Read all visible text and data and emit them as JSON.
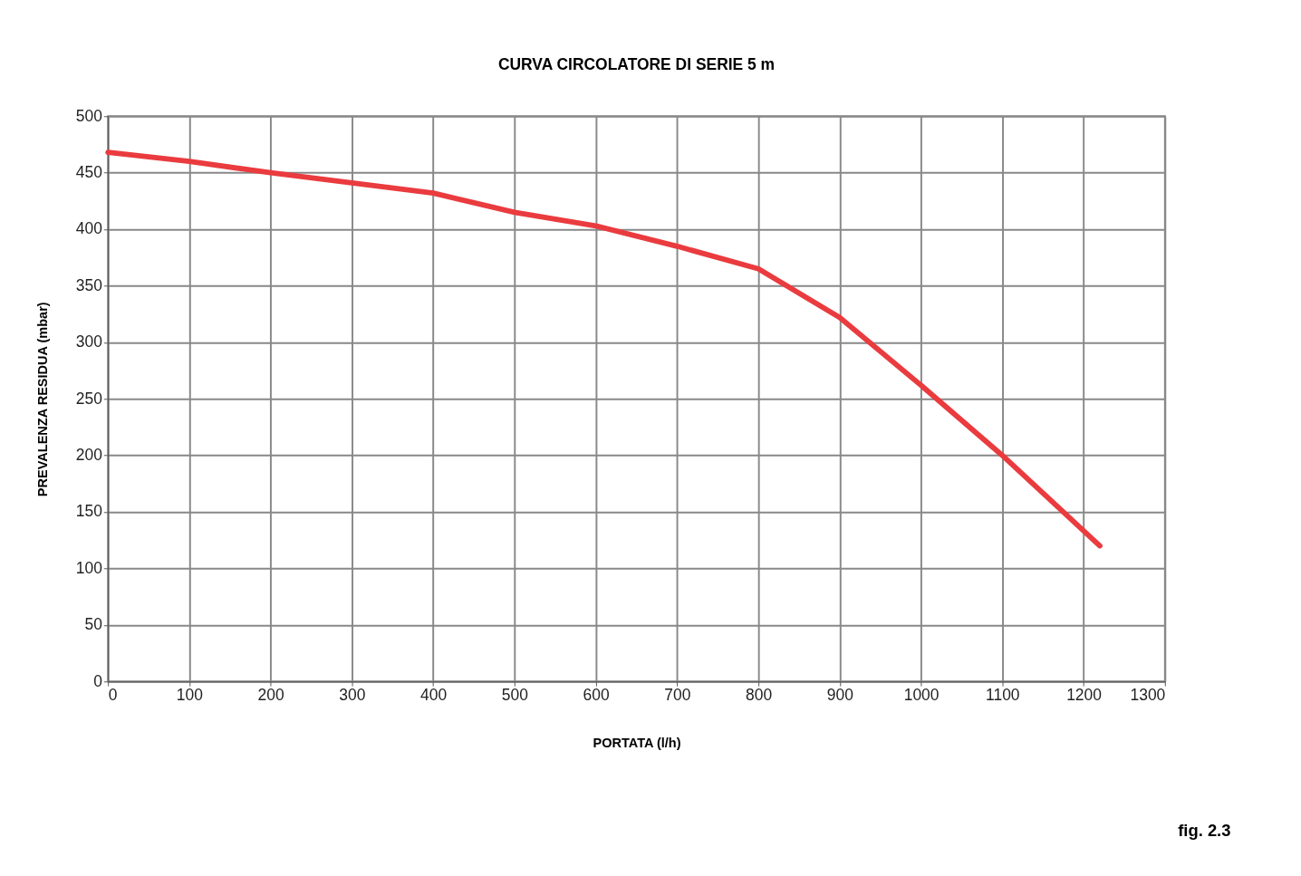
{
  "chart_data": {
    "type": "line",
    "title": "CURVA CIRCOLATORE DI SERIE 5 m",
    "xlabel": "PORTATA (l/h)",
    "ylabel": "PREVALENZA RESIDUA (mbar)",
    "annotations": [
      "fig. 2.3"
    ],
    "x": [
      0,
      100,
      200,
      300,
      400,
      500,
      600,
      700,
      800,
      900,
      1000,
      1100,
      1220
    ],
    "series": [
      {
        "color": "#ea3b3f",
        "values": [
          468,
          460,
          450,
          441,
          432,
          415,
          403,
          385,
          365,
          322,
          262,
          200,
          120
        ]
      }
    ],
    "xlim": [
      0,
      1300
    ],
    "xticks": [
      0,
      100,
      200,
      300,
      400,
      500,
      600,
      700,
      800,
      900,
      1000,
      1100,
      1200,
      1300
    ],
    "ylim": [
      0,
      500
    ],
    "yticks": [
      0,
      50,
      100,
      150,
      200,
      250,
      300,
      350,
      400,
      450,
      500
    ],
    "grid": true,
    "marker": "none",
    "line_style": "solid"
  }
}
